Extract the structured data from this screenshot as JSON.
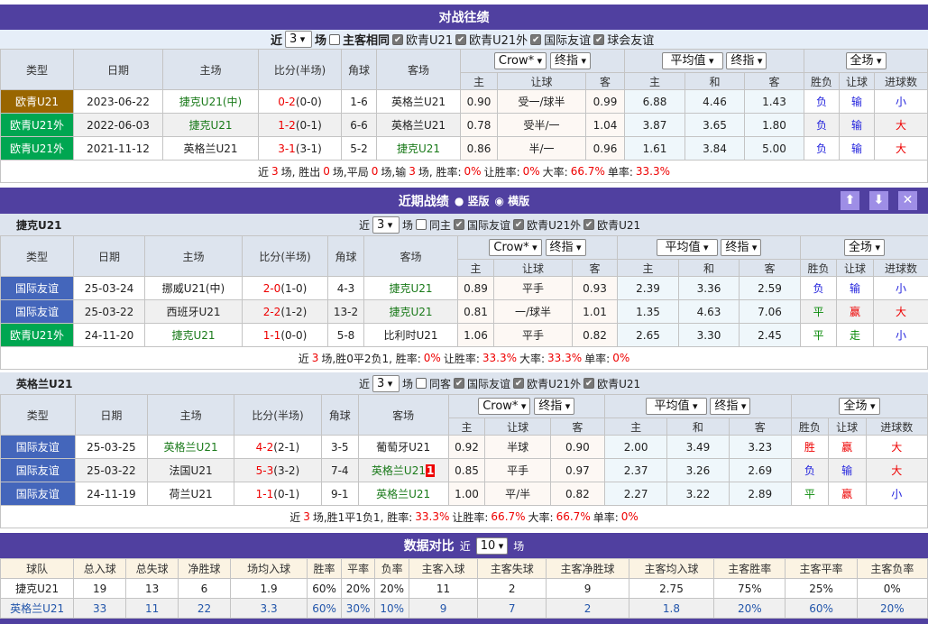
{
  "h2h": {
    "title": "对战往绩",
    "filter": {
      "near": "近",
      "count": "3",
      "unit": "场",
      "same_label": "主客相同",
      "same_checked": false,
      "leagues": [
        {
          "label": "欧青U21",
          "checked": true
        },
        {
          "label": "欧青U21外",
          "checked": true
        },
        {
          "label": "国际友谊",
          "checked": true
        },
        {
          "label": "球会友谊",
          "checked": true
        }
      ]
    },
    "rows": [
      {
        "type": "欧青U21",
        "type_color": "#996600",
        "date": "2023-06-22",
        "home": "捷克U21(中)",
        "home_hl": true,
        "score": "0-2",
        "half": "(0-0)",
        "corner": "1-6",
        "away": "英格兰U21",
        "away_hl": false,
        "odds": [
          "0.90",
          "受一/球半",
          "0.99"
        ],
        "eu": [
          "6.88",
          "4.46",
          "1.43"
        ],
        "wl": "负",
        "hc": "输",
        "ou": "小"
      },
      {
        "type": "欧青U21外",
        "type_color": "#00a651",
        "date": "2022-06-03",
        "home": "捷克U21",
        "home_hl": true,
        "score": "1-2",
        "half": "(0-1)",
        "corner": "6-6",
        "away": "英格兰U21",
        "away_hl": false,
        "odds": [
          "0.78",
          "受半/一",
          "1.04"
        ],
        "eu": [
          "3.87",
          "3.65",
          "1.80"
        ],
        "wl": "负",
        "hc": "输",
        "ou": "大"
      },
      {
        "type": "欧青U21外",
        "type_color": "#00a651",
        "date": "2021-11-12",
        "home": "英格兰U21",
        "home_hl": false,
        "score": "3-1",
        "half": "(3-1)",
        "corner": "5-2",
        "away": "捷克U21",
        "away_hl": true,
        "odds": [
          "0.86",
          "半/一",
          "0.96"
        ],
        "eu": [
          "1.61",
          "3.84",
          "5.00"
        ],
        "wl": "负",
        "hc": "输",
        "ou": "大"
      }
    ],
    "summary": [
      [
        "近 ",
        0
      ],
      [
        "3",
        1
      ],
      [
        " 场, 胜出 ",
        0
      ],
      [
        "0",
        1
      ],
      [
        " 场,平局 ",
        0
      ],
      [
        "0",
        1
      ],
      [
        " 场,输 ",
        0
      ],
      [
        "3",
        1
      ],
      [
        " 场, 胜率: ",
        0
      ],
      [
        "0%",
        1
      ],
      [
        " 让胜率: ",
        0
      ],
      [
        "0%",
        1
      ],
      [
        " 大率: ",
        0
      ],
      [
        "66.7%",
        1
      ],
      [
        " 单率: ",
        0
      ],
      [
        "33.3%",
        1
      ]
    ]
  },
  "headers": {
    "type": "类型",
    "date": "日期",
    "home": "主场",
    "score": "比分(半场)",
    "corner": "角球",
    "away": "客场",
    "sel_company": "Crow*",
    "sel_final": "终指",
    "sel_avg": "平均值",
    "sel_final2": "终指",
    "sel_scope": "全场",
    "sub": [
      "主",
      "让球",
      "客",
      "主",
      "和",
      "客",
      "胜负",
      "让球",
      "进球数"
    ]
  },
  "recent": {
    "title": "近期战绩",
    "radio_vertical": "竖版",
    "radio_horizontal": "横版",
    "layout": "横版",
    "teams": [
      {
        "name": "捷克U21",
        "near": "近",
        "count": "3",
        "unit": "场",
        "same_label": "同主",
        "same_checked": false,
        "leagues": [
          {
            "label": "国际友谊",
            "checked": true
          },
          {
            "label": "欧青U21外",
            "checked": true
          },
          {
            "label": "欧青U21",
            "checked": true
          }
        ],
        "rows": [
          {
            "type": "国际友谊",
            "type_color": "#4466bb",
            "date": "25-03-24",
            "home": "挪威U21(中)",
            "home_hl": false,
            "score": "2-0",
            "half": "(1-0)",
            "corner": "4-3",
            "away": "捷克U21",
            "away_hl": true,
            "odds": [
              "0.89",
              "平手",
              "0.93"
            ],
            "eu": [
              "2.39",
              "3.36",
              "2.59"
            ],
            "wl": "负",
            "hc": "输",
            "ou": "小"
          },
          {
            "type": "国际友谊",
            "type_color": "#4466bb",
            "date": "25-03-22",
            "home": "西班牙U21",
            "home_hl": false,
            "score": "2-2",
            "half": "(1-2)",
            "corner": "13-2",
            "away": "捷克U21",
            "away_hl": true,
            "odds": [
              "0.81",
              "一/球半",
              "1.01"
            ],
            "eu": [
              "1.35",
              "4.63",
              "7.06"
            ],
            "wl": "平",
            "hc": "赢",
            "ou": "大"
          },
          {
            "type": "欧青U21外",
            "type_color": "#00a651",
            "date": "24-11-20",
            "home": "捷克U21",
            "home_hl": true,
            "score": "1-1",
            "half": "(0-0)",
            "corner": "5-8",
            "away": "比利时U21",
            "away_hl": false,
            "odds": [
              "1.06",
              "平手",
              "0.82"
            ],
            "eu": [
              "2.65",
              "3.30",
              "2.45"
            ],
            "wl": "平",
            "hc": "走",
            "ou": "小"
          }
        ],
        "summary": [
          [
            "近",
            0
          ],
          [
            "3",
            1
          ],
          [
            "场,胜0平2负1, 胜率:",
            0
          ],
          [
            "0%",
            1
          ],
          [
            " 让胜率:",
            0
          ],
          [
            "33.3%",
            1
          ],
          [
            " 大率:",
            0
          ],
          [
            "33.3%",
            1
          ],
          [
            " 单率:",
            0
          ],
          [
            "0%",
            1
          ]
        ]
      },
      {
        "name": "英格兰U21",
        "near": "近",
        "count": "3",
        "unit": "场",
        "same_label": "同客",
        "same_checked": false,
        "leagues": [
          {
            "label": "国际友谊",
            "checked": true
          },
          {
            "label": "欧青U21外",
            "checked": true
          },
          {
            "label": "欧青U21",
            "checked": true
          }
        ],
        "rows": [
          {
            "type": "国际友谊",
            "type_color": "#4466bb",
            "date": "25-03-25",
            "home": "英格兰U21",
            "home_hl": true,
            "score": "4-2",
            "half": "(2-1)",
            "corner": "3-5",
            "away": "葡萄牙U21",
            "away_hl": false,
            "odds": [
              "0.92",
              "半球",
              "0.90"
            ],
            "eu": [
              "2.00",
              "3.49",
              "3.23"
            ],
            "wl": "胜",
            "hc": "赢",
            "ou": "大"
          },
          {
            "type": "国际友谊",
            "type_color": "#4466bb",
            "date": "25-03-22",
            "home": "法国U21",
            "home_hl": false,
            "score": "5-3",
            "half": "(3-2)",
            "corner": "7-4",
            "away": "英格兰U21",
            "away_hl": true,
            "away_flag": "1",
            "odds": [
              "0.85",
              "平手",
              "0.97"
            ],
            "eu": [
              "2.37",
              "3.26",
              "2.69"
            ],
            "wl": "负",
            "hc": "输",
            "ou": "大"
          },
          {
            "type": "国际友谊",
            "type_color": "#4466bb",
            "date": "24-11-19",
            "home": "荷兰U21",
            "home_hl": false,
            "score": "1-1",
            "half": "(0-1)",
            "corner": "9-1",
            "away": "英格兰U21",
            "away_hl": true,
            "odds": [
              "1.00",
              "平/半",
              "0.82"
            ],
            "eu": [
              "2.27",
              "3.22",
              "2.89"
            ],
            "wl": "平",
            "hc": "赢",
            "ou": "小"
          }
        ],
        "summary": [
          [
            "近",
            0
          ],
          [
            "3",
            1
          ],
          [
            "场,胜1平1负1, 胜率:",
            0
          ],
          [
            "33.3%",
            1
          ],
          [
            " 让胜率:",
            0
          ],
          [
            "66.7%",
            1
          ],
          [
            " 大率:",
            0
          ],
          [
            "66.7%",
            1
          ],
          [
            " 单率:",
            0
          ],
          [
            "0%",
            1
          ]
        ]
      }
    ]
  },
  "compare": {
    "title": "数据对比",
    "near": "近",
    "count": "10",
    "unit": "场",
    "columns": [
      "球队",
      "总入球",
      "总失球",
      "净胜球",
      "场均入球",
      "胜率",
      "平率",
      "负率",
      "主客入球",
      "主客失球",
      "主客净胜球",
      "主客均入球",
      "主客胜率",
      "主客平率",
      "主客负率"
    ],
    "rows": [
      [
        "捷克U21",
        "19",
        "13",
        "6",
        "1.9",
        "60%",
        "20%",
        "20%",
        "11",
        "2",
        "9",
        "2.75",
        "75%",
        "25%",
        "0%"
      ],
      [
        "英格兰U21",
        "33",
        "11",
        "22",
        "3.3",
        "60%",
        "30%",
        "10%",
        "9",
        "7",
        "2",
        "1.8",
        "20%",
        "60%",
        "20%"
      ]
    ]
  },
  "colors": {
    "header": "#5040a0",
    "win": "#ee0000",
    "loss": "#2222dd",
    "draw": "#0a8a0a"
  }
}
